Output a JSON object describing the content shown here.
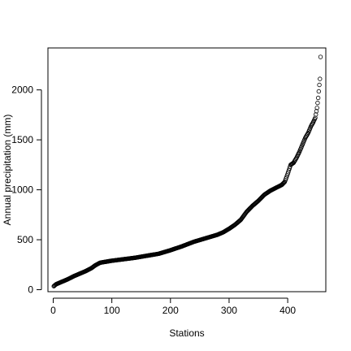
{
  "chart_data": {
    "type": "scatter",
    "title": "",
    "xlabel": "Stations",
    "ylabel": "Annual precipitation (mm)",
    "xlim": [
      -9,
      465
    ],
    "ylim": [
      -20,
      2420
    ],
    "xticks": [
      0,
      100,
      200,
      300,
      400
    ],
    "yticks": [
      0,
      500,
      1000,
      1500,
      2000
    ],
    "grid": false,
    "legend": "none",
    "marker": "open-circle",
    "marker_color": "#000000",
    "n_points": 456,
    "curve_knots": [
      [
        1,
        35
      ],
      [
        5,
        55
      ],
      [
        15,
        80
      ],
      [
        25,
        105
      ],
      [
        35,
        135
      ],
      [
        45,
        160
      ],
      [
        55,
        185
      ],
      [
        65,
        215
      ],
      [
        72,
        245
      ],
      [
        80,
        270
      ],
      [
        90,
        280
      ],
      [
        100,
        290
      ],
      [
        120,
        305
      ],
      [
        140,
        320
      ],
      [
        160,
        340
      ],
      [
        180,
        360
      ],
      [
        200,
        395
      ],
      [
        220,
        435
      ],
      [
        240,
        480
      ],
      [
        260,
        515
      ],
      [
        280,
        550
      ],
      [
        290,
        575
      ],
      [
        300,
        610
      ],
      [
        310,
        650
      ],
      [
        320,
        700
      ],
      [
        330,
        780
      ],
      [
        340,
        840
      ],
      [
        350,
        890
      ],
      [
        360,
        950
      ],
      [
        370,
        990
      ],
      [
        380,
        1020
      ],
      [
        390,
        1050
      ],
      [
        395,
        1080
      ],
      [
        400,
        1160
      ],
      [
        405,
        1250
      ],
      [
        410,
        1270
      ],
      [
        415,
        1320
      ],
      [
        420,
        1380
      ],
      [
        425,
        1450
      ],
      [
        430,
        1520
      ],
      [
        435,
        1570
      ],
      [
        440,
        1640
      ],
      [
        443,
        1670
      ],
      [
        447,
        1720
      ],
      [
        450,
        1820
      ],
      [
        452,
        1920
      ],
      [
        454,
        2050
      ],
      [
        455,
        2110
      ],
      [
        456,
        2330
      ]
    ]
  }
}
